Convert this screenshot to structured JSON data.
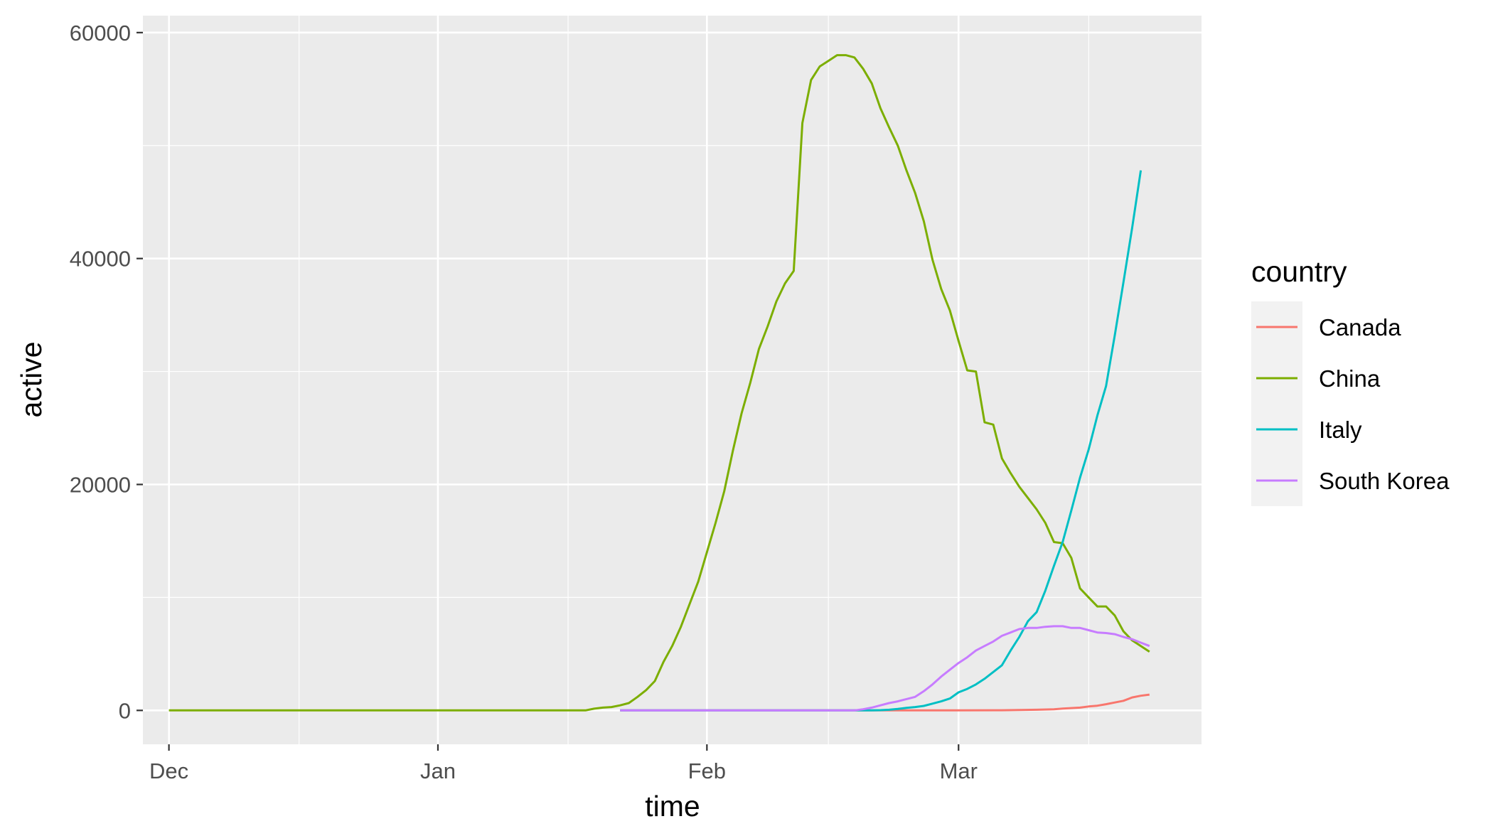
{
  "chart_data": {
    "type": "line",
    "xlabel": "time",
    "ylabel": "active",
    "x_axis": {
      "type": "date",
      "range": [
        "2019-11-28",
        "2020-03-29"
      ],
      "ticks": [
        {
          "date": "2019-12-01",
          "label": "Dec"
        },
        {
          "date": "2020-01-01",
          "label": "Jan"
        },
        {
          "date": "2020-02-01",
          "label": "Feb"
        },
        {
          "date": "2020-03-01",
          "label": "Mar"
        }
      ],
      "minor_ticks": [
        "2019-12-16",
        "2020-01-16",
        "2020-02-15",
        "2020-03-16"
      ]
    },
    "y_axis": {
      "range": [
        -3000,
        61500
      ],
      "ticks": [
        0,
        20000,
        40000,
        60000
      ],
      "tick_labels": [
        "0",
        "20000",
        "40000",
        "60000"
      ],
      "minor_ticks": [
        10000,
        30000,
        50000
      ]
    },
    "grid": true,
    "panel_background": "#ebebeb",
    "grid_color": "#ffffff",
    "legend": {
      "title": "country",
      "placement": "right",
      "key_background": "#f2f2f2"
    },
    "series": [
      {
        "name": "Canada",
        "color": "#F8766D",
        "points": [
          [
            "2020-01-22",
            0
          ],
          [
            "2020-01-26",
            0
          ],
          [
            "2020-02-05",
            0
          ],
          [
            "2020-02-15",
            0
          ],
          [
            "2020-02-25",
            0
          ],
          [
            "2020-03-01",
            0
          ],
          [
            "2020-03-06",
            15
          ],
          [
            "2020-03-08",
            40
          ],
          [
            "2020-03-10",
            60
          ],
          [
            "2020-03-12",
            100
          ],
          [
            "2020-03-13",
            160
          ],
          [
            "2020-03-15",
            250
          ],
          [
            "2020-03-16",
            350
          ],
          [
            "2020-03-17",
            420
          ],
          [
            "2020-03-18",
            550
          ],
          [
            "2020-03-19",
            700
          ],
          [
            "2020-03-20",
            850
          ],
          [
            "2020-03-21",
            1150
          ],
          [
            "2020-03-22",
            1300
          ],
          [
            "2020-03-23",
            1400
          ]
        ]
      },
      {
        "name": "China",
        "color": "#7CAE00",
        "points": [
          [
            "2019-12-01",
            0
          ],
          [
            "2019-12-15",
            0
          ],
          [
            "2020-01-01",
            0
          ],
          [
            "2020-01-15",
            0
          ],
          [
            "2020-01-18",
            0
          ],
          [
            "2020-01-19",
            150
          ],
          [
            "2020-01-20",
            250
          ],
          [
            "2020-01-21",
            300
          ],
          [
            "2020-01-22",
            450
          ],
          [
            "2020-01-23",
            650
          ],
          [
            "2020-01-24",
            1200
          ],
          [
            "2020-01-25",
            1800
          ],
          [
            "2020-01-26",
            2600
          ],
          [
            "2020-01-27",
            4300
          ],
          [
            "2020-01-28",
            5700
          ],
          [
            "2020-01-29",
            7400
          ],
          [
            "2020-01-30",
            9400
          ],
          [
            "2020-01-31",
            11400
          ],
          [
            "2020-02-01",
            14000
          ],
          [
            "2020-02-02",
            16600
          ],
          [
            "2020-02-03",
            19400
          ],
          [
            "2020-02-04",
            23000
          ],
          [
            "2020-02-05",
            26300
          ],
          [
            "2020-02-06",
            29000
          ],
          [
            "2020-02-07",
            32000
          ],
          [
            "2020-02-08",
            34000
          ],
          [
            "2020-02-09",
            36200
          ],
          [
            "2020-02-10",
            37800
          ],
          [
            "2020-02-11",
            38900
          ],
          [
            "2020-02-12",
            52000
          ],
          [
            "2020-02-13",
            55800
          ],
          [
            "2020-02-14",
            57000
          ],
          [
            "2020-02-15",
            57500
          ],
          [
            "2020-02-16",
            58000
          ],
          [
            "2020-02-17",
            58000
          ],
          [
            "2020-02-18",
            57800
          ],
          [
            "2020-02-19",
            56800
          ],
          [
            "2020-02-20",
            55500
          ],
          [
            "2020-02-21",
            53300
          ],
          [
            "2020-02-22",
            51600
          ],
          [
            "2020-02-23",
            50000
          ],
          [
            "2020-02-24",
            47800
          ],
          [
            "2020-02-25",
            45800
          ],
          [
            "2020-02-26",
            43300
          ],
          [
            "2020-02-27",
            39900
          ],
          [
            "2020-02-28",
            37300
          ],
          [
            "2020-02-29",
            35400
          ],
          [
            "2020-03-01",
            32700
          ],
          [
            "2020-03-02",
            30100
          ],
          [
            "2020-03-03",
            30000
          ],
          [
            "2020-03-04",
            25500
          ],
          [
            "2020-03-05",
            25300
          ],
          [
            "2020-03-06",
            22300
          ],
          [
            "2020-03-07",
            21000
          ],
          [
            "2020-03-08",
            19800
          ],
          [
            "2020-03-09",
            18800
          ],
          [
            "2020-03-10",
            17800
          ],
          [
            "2020-03-11",
            16600
          ],
          [
            "2020-03-12",
            14900
          ],
          [
            "2020-03-13",
            14800
          ],
          [
            "2020-03-14",
            13500
          ],
          [
            "2020-03-15",
            10800
          ],
          [
            "2020-03-16",
            10000
          ],
          [
            "2020-03-17",
            9200
          ],
          [
            "2020-03-18",
            9200
          ],
          [
            "2020-03-19",
            8400
          ],
          [
            "2020-03-20",
            7000
          ],
          [
            "2020-03-21",
            6200
          ],
          [
            "2020-03-22",
            5700
          ],
          [
            "2020-03-23",
            5200
          ]
        ]
      },
      {
        "name": "Italy",
        "color": "#00BFC4",
        "points": [
          [
            "2020-01-22",
            0
          ],
          [
            "2020-02-01",
            0
          ],
          [
            "2020-02-10",
            0
          ],
          [
            "2020-02-19",
            0
          ],
          [
            "2020-02-20",
            0
          ],
          [
            "2020-02-21",
            20
          ],
          [
            "2020-02-22",
            60
          ],
          [
            "2020-02-23",
            130
          ],
          [
            "2020-02-24",
            220
          ],
          [
            "2020-02-25",
            300
          ],
          [
            "2020-02-26",
            400
          ],
          [
            "2020-02-27",
            600
          ],
          [
            "2020-02-28",
            800
          ],
          [
            "2020-02-29",
            1050
          ],
          [
            "2020-03-01",
            1600
          ],
          [
            "2020-03-02",
            1900
          ],
          [
            "2020-03-03",
            2300
          ],
          [
            "2020-03-04",
            2800
          ],
          [
            "2020-03-05",
            3400
          ],
          [
            "2020-03-06",
            4000
          ],
          [
            "2020-03-07",
            5300
          ],
          [
            "2020-03-08",
            6500
          ],
          [
            "2020-03-09",
            7900
          ],
          [
            "2020-03-10",
            8700
          ],
          [
            "2020-03-11",
            10600
          ],
          [
            "2020-03-12",
            12800
          ],
          [
            "2020-03-13",
            14900
          ],
          [
            "2020-03-14",
            17700
          ],
          [
            "2020-03-15",
            20600
          ],
          [
            "2020-03-16",
            23100
          ],
          [
            "2020-03-17",
            26100
          ],
          [
            "2020-03-18",
            28700
          ],
          [
            "2020-03-19",
            33200
          ],
          [
            "2020-03-20",
            37900
          ],
          [
            "2020-03-21",
            42700
          ],
          [
            "2020-03-22",
            47800
          ]
        ]
      },
      {
        "name": "South Korea",
        "color": "#C77CFF",
        "points": [
          [
            "2020-01-22",
            0
          ],
          [
            "2020-02-01",
            0
          ],
          [
            "2020-02-10",
            0
          ],
          [
            "2020-02-18",
            0
          ],
          [
            "2020-02-19",
            100
          ],
          [
            "2020-02-20",
            250
          ],
          [
            "2020-02-21",
            450
          ],
          [
            "2020-02-22",
            650
          ],
          [
            "2020-02-23",
            800
          ],
          [
            "2020-02-24",
            1000
          ],
          [
            "2020-02-25",
            1200
          ],
          [
            "2020-02-26",
            1700
          ],
          [
            "2020-02-27",
            2300
          ],
          [
            "2020-02-28",
            3000
          ],
          [
            "2020-02-29",
            3600
          ],
          [
            "2020-03-01",
            4200
          ],
          [
            "2020-03-02",
            4700
          ],
          [
            "2020-03-03",
            5300
          ],
          [
            "2020-03-04",
            5700
          ],
          [
            "2020-03-05",
            6100
          ],
          [
            "2020-03-06",
            6600
          ],
          [
            "2020-03-07",
            6900
          ],
          [
            "2020-03-08",
            7200
          ],
          [
            "2020-03-09",
            7300
          ],
          [
            "2020-03-10",
            7300
          ],
          [
            "2020-03-11",
            7400
          ],
          [
            "2020-03-12",
            7450
          ],
          [
            "2020-03-13",
            7450
          ],
          [
            "2020-03-14",
            7300
          ],
          [
            "2020-03-15",
            7300
          ],
          [
            "2020-03-16",
            7100
          ],
          [
            "2020-03-17",
            6900
          ],
          [
            "2020-03-18",
            6850
          ],
          [
            "2020-03-19",
            6750
          ],
          [
            "2020-03-20",
            6500
          ],
          [
            "2020-03-21",
            6300
          ],
          [
            "2020-03-22",
            6000
          ],
          [
            "2020-03-23",
            5700
          ]
        ]
      }
    ]
  }
}
